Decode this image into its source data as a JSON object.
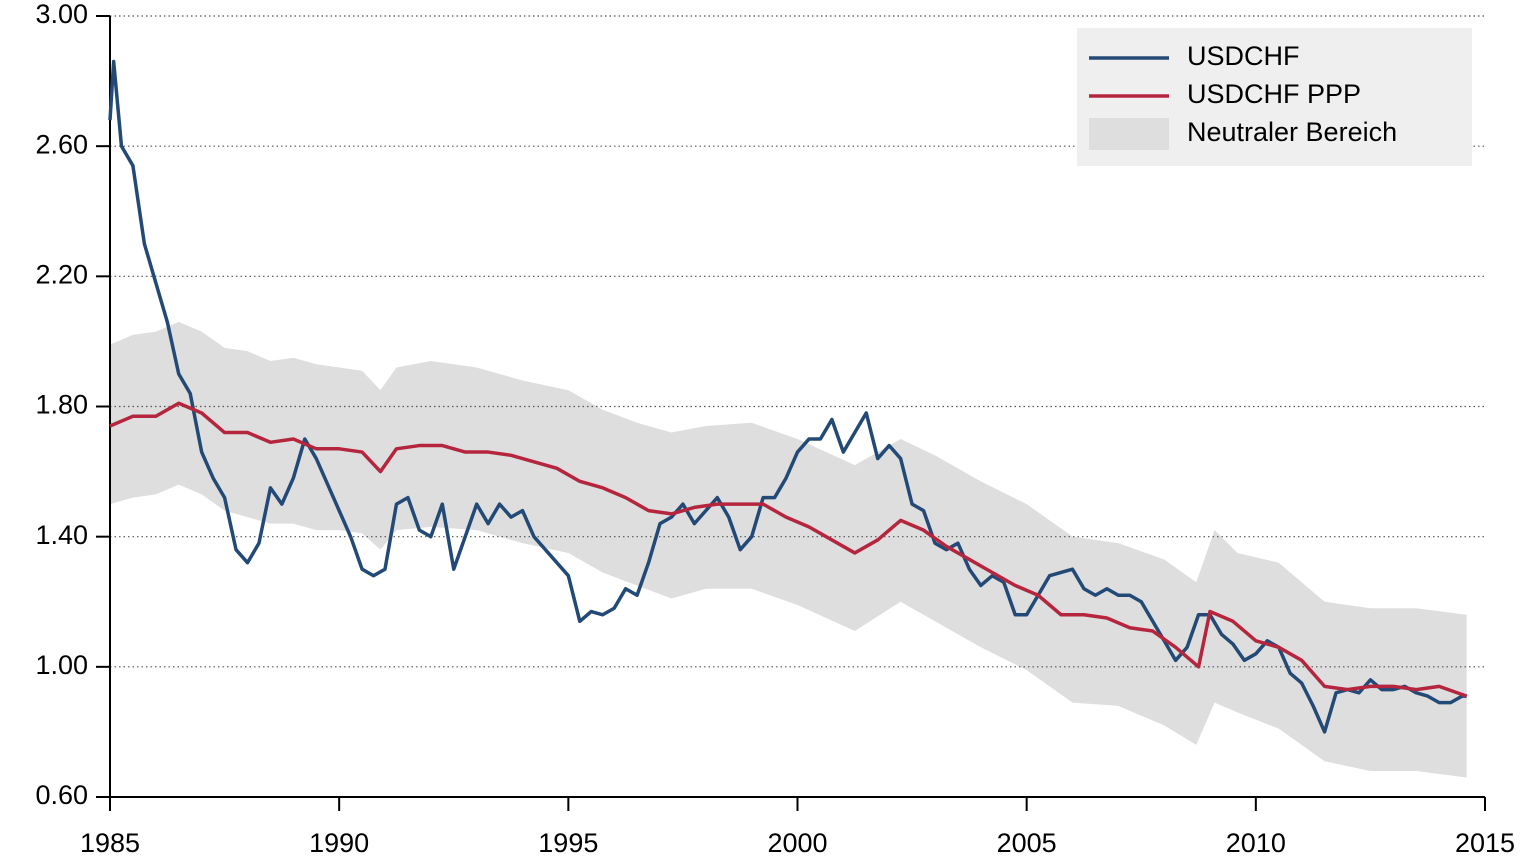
{
  "chart_data": {
    "type": "line",
    "xlim": [
      1985,
      2015
    ],
    "xticks": [
      1985,
      1990,
      1995,
      2000,
      2005,
      2010,
      2015
    ],
    "ylim": [
      0.6,
      3.0
    ],
    "yticks": [
      {
        "value": 0.6,
        "label": "0.60"
      },
      {
        "value": 1.0,
        "label": "1.00"
      },
      {
        "value": 1.4,
        "label": "1.40"
      },
      {
        "value": 1.8,
        "label": "1.80"
      },
      {
        "value": 2.2,
        "label": "2.20"
      },
      {
        "value": 2.6,
        "label": "2.60"
      },
      {
        "value": 3.0,
        "label": "3.00"
      }
    ],
    "grid": true,
    "legend": "upper right",
    "band": {
      "name": "Neutraler Bereich",
      "color": "#dedede",
      "x": [
        1985,
        1985.5,
        1986,
        1986.5,
        1987,
        1987.5,
        1988,
        1988.5,
        1989,
        1989.5,
        1990,
        1990.5,
        1990.9,
        1991.25,
        1992,
        1993,
        1994,
        1995,
        1995.75,
        1996.5,
        1997.25,
        1998,
        1999,
        2000,
        2001.25,
        2002.25,
        2003,
        2004,
        2005,
        2006,
        2007,
        2008,
        2008.7,
        2009.1,
        2009.6,
        2010.5,
        2011.5,
        2012.5,
        2013.5,
        2014.6
      ],
      "lower": [
        1.5,
        1.52,
        1.53,
        1.56,
        1.53,
        1.48,
        1.46,
        1.44,
        1.44,
        1.42,
        1.42,
        1.41,
        1.36,
        1.42,
        1.43,
        1.42,
        1.38,
        1.35,
        1.29,
        1.25,
        1.21,
        1.24,
        1.24,
        1.19,
        1.11,
        1.2,
        1.14,
        1.06,
        0.99,
        0.89,
        0.88,
        0.82,
        0.76,
        0.89,
        0.86,
        0.81,
        0.71,
        0.68,
        0.68,
        0.66
      ],
      "upper": [
        1.99,
        2.02,
        2.03,
        2.06,
        2.03,
        1.98,
        1.97,
        1.94,
        1.95,
        1.93,
        1.92,
        1.91,
        1.85,
        1.92,
        1.94,
        1.92,
        1.88,
        1.85,
        1.79,
        1.75,
        1.72,
        1.74,
        1.75,
        1.7,
        1.62,
        1.7,
        1.65,
        1.57,
        1.5,
        1.4,
        1.38,
        1.33,
        1.26,
        1.42,
        1.35,
        1.32,
        1.2,
        1.18,
        1.18,
        1.16
      ]
    },
    "series": [
      {
        "name": "USDCHF",
        "color": "#234a77",
        "x": [
          1985,
          1985.08,
          1985.25,
          1985.5,
          1985.75,
          1986,
          1986.25,
          1986.5,
          1986.75,
          1987,
          1987.25,
          1987.5,
          1987.75,
          1988,
          1988.25,
          1988.5,
          1988.75,
          1989,
          1989.25,
          1989.5,
          1989.75,
          1990,
          1990.25,
          1990.5,
          1990.75,
          1991,
          1991.25,
          1991.5,
          1991.75,
          1992,
          1992.25,
          1992.5,
          1992.75,
          1993,
          1993.25,
          1993.5,
          1993.75,
          1994,
          1994.25,
          1994.5,
          1994.75,
          1995,
          1995.25,
          1995.5,
          1995.75,
          1996,
          1996.25,
          1996.5,
          1996.75,
          1997,
          1997.25,
          1997.5,
          1997.75,
          1998,
          1998.25,
          1998.5,
          1998.75,
          1999,
          1999.25,
          1999.5,
          1999.75,
          2000,
          2000.25,
          2000.5,
          2000.75,
          2001,
          2001.25,
          2001.5,
          2001.75,
          2002,
          2002.25,
          2002.5,
          2002.75,
          2003,
          2003.25,
          2003.5,
          2003.75,
          2004,
          2004.25,
          2004.5,
          2004.75,
          2005,
          2005.25,
          2005.5,
          2005.75,
          2006,
          2006.25,
          2006.5,
          2006.75,
          2007,
          2007.25,
          2007.5,
          2007.75,
          2008,
          2008.25,
          2008.5,
          2008.75,
          2009,
          2009.25,
          2009.5,
          2009.75,
          2010,
          2010.25,
          2010.5,
          2010.75,
          2011,
          2011.25,
          2011.5,
          2011.75,
          2012,
          2012.25,
          2012.5,
          2012.75,
          2013,
          2013.25,
          2013.5,
          2013.75,
          2014,
          2014.25,
          2014.5,
          2014.6
        ],
        "values": [
          2.68,
          2.86,
          2.6,
          2.54,
          2.3,
          2.18,
          2.06,
          1.9,
          1.84,
          1.66,
          1.58,
          1.52,
          1.36,
          1.32,
          1.38,
          1.55,
          1.5,
          1.58,
          1.7,
          1.64,
          1.56,
          1.48,
          1.4,
          1.3,
          1.28,
          1.3,
          1.5,
          1.52,
          1.42,
          1.4,
          1.5,
          1.3,
          1.4,
          1.5,
          1.44,
          1.5,
          1.46,
          1.48,
          1.4,
          1.36,
          1.32,
          1.28,
          1.14,
          1.17,
          1.16,
          1.18,
          1.24,
          1.22,
          1.32,
          1.44,
          1.46,
          1.5,
          1.44,
          1.48,
          1.52,
          1.46,
          1.36,
          1.4,
          1.52,
          1.52,
          1.58,
          1.66,
          1.7,
          1.7,
          1.76,
          1.66,
          1.72,
          1.78,
          1.64,
          1.68,
          1.64,
          1.5,
          1.48,
          1.38,
          1.36,
          1.38,
          1.3,
          1.25,
          1.28,
          1.26,
          1.16,
          1.16,
          1.22,
          1.28,
          1.29,
          1.3,
          1.24,
          1.22,
          1.24,
          1.22,
          1.22,
          1.2,
          1.14,
          1.08,
          1.02,
          1.06,
          1.16,
          1.16,
          1.1,
          1.07,
          1.02,
          1.04,
          1.08,
          1.06,
          0.98,
          0.95,
          0.88,
          0.8,
          0.92,
          0.93,
          0.92,
          0.96,
          0.93,
          0.93,
          0.94,
          0.92,
          0.91,
          0.89,
          0.89,
          0.91,
          0.91
        ]
      },
      {
        "name": "USDCHF PPP",
        "color": "#b5263e",
        "x": [
          1985,
          1985.5,
          1986,
          1986.5,
          1987,
          1987.5,
          1988,
          1988.5,
          1989,
          1989.5,
          1990,
          1990.5,
          1990.9,
          1991.25,
          1991.75,
          1992.25,
          1992.75,
          1993.25,
          1993.75,
          1994.25,
          1994.75,
          1995.25,
          1995.75,
          1996.25,
          1996.75,
          1997.25,
          1997.75,
          1998.25,
          1998.75,
          1999.25,
          1999.75,
          2000.25,
          2000.75,
          2001.25,
          2001.75,
          2002.25,
          2002.75,
          2003.25,
          2003.75,
          2004.25,
          2004.75,
          2005.25,
          2005.75,
          2006.25,
          2006.75,
          2007.25,
          2007.75,
          2008.25,
          2008.75,
          2009,
          2009.5,
          2010,
          2010.5,
          2011,
          2011.5,
          2012,
          2012.5,
          2013,
          2013.5,
          2014,
          2014.6
        ],
        "values": [
          1.74,
          1.77,
          1.77,
          1.81,
          1.78,
          1.72,
          1.72,
          1.69,
          1.7,
          1.67,
          1.67,
          1.66,
          1.6,
          1.67,
          1.68,
          1.68,
          1.66,
          1.66,
          1.65,
          1.63,
          1.61,
          1.57,
          1.55,
          1.52,
          1.48,
          1.47,
          1.49,
          1.5,
          1.5,
          1.5,
          1.46,
          1.43,
          1.39,
          1.35,
          1.39,
          1.45,
          1.42,
          1.37,
          1.33,
          1.29,
          1.25,
          1.22,
          1.16,
          1.16,
          1.15,
          1.12,
          1.11,
          1.06,
          1.0,
          1.17,
          1.14,
          1.08,
          1.06,
          1.02,
          0.94,
          0.93,
          0.94,
          0.94,
          0.93,
          0.94,
          0.91
        ]
      }
    ]
  }
}
